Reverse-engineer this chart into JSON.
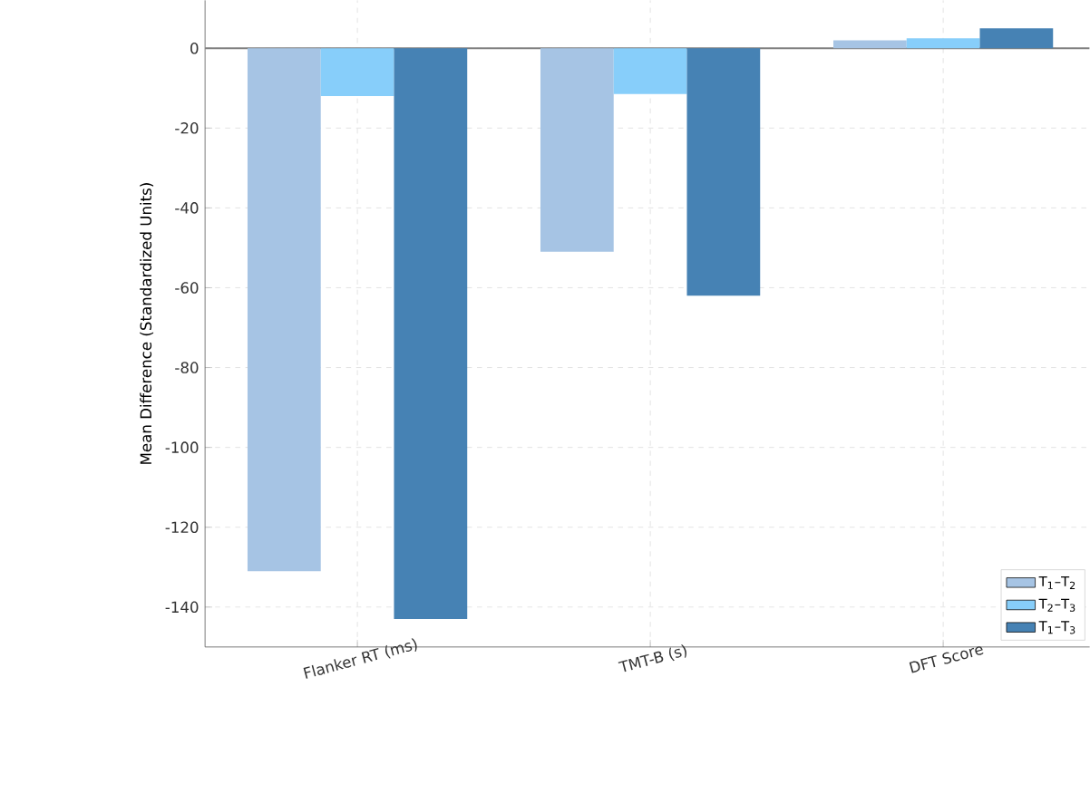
{
  "chart_data": {
    "type": "bar",
    "ylabel": "Mean Difference (Standardized Units)",
    "categories": [
      "Flanker RT (ms)",
      "TMT-B (s)",
      "DFT Score"
    ],
    "series": [
      {
        "name": "T$_{1}$–T$_{2}$",
        "color": "#a6c4e4",
        "values": [
          -131,
          -51,
          2.0
        ]
      },
      {
        "name": "T$_{2}$–T$_{3}$",
        "color": "#87cefa",
        "values": [
          -12,
          -11.5,
          2.5
        ]
      },
      {
        "name": "T$_{1}$–T$_{3}$",
        "color": "#4682b4",
        "values": [
          -143,
          -62,
          5.0
        ]
      }
    ],
    "ylim": [
      -150,
      12
    ],
    "yticks": [
      0,
      -20,
      -40,
      -60,
      -80,
      -100,
      -120,
      -140
    ],
    "ref_lines": [
      {
        "axis": "y",
        "value": 0,
        "color": "#808080"
      }
    ],
    "grid": true,
    "legend": "bottom right"
  }
}
